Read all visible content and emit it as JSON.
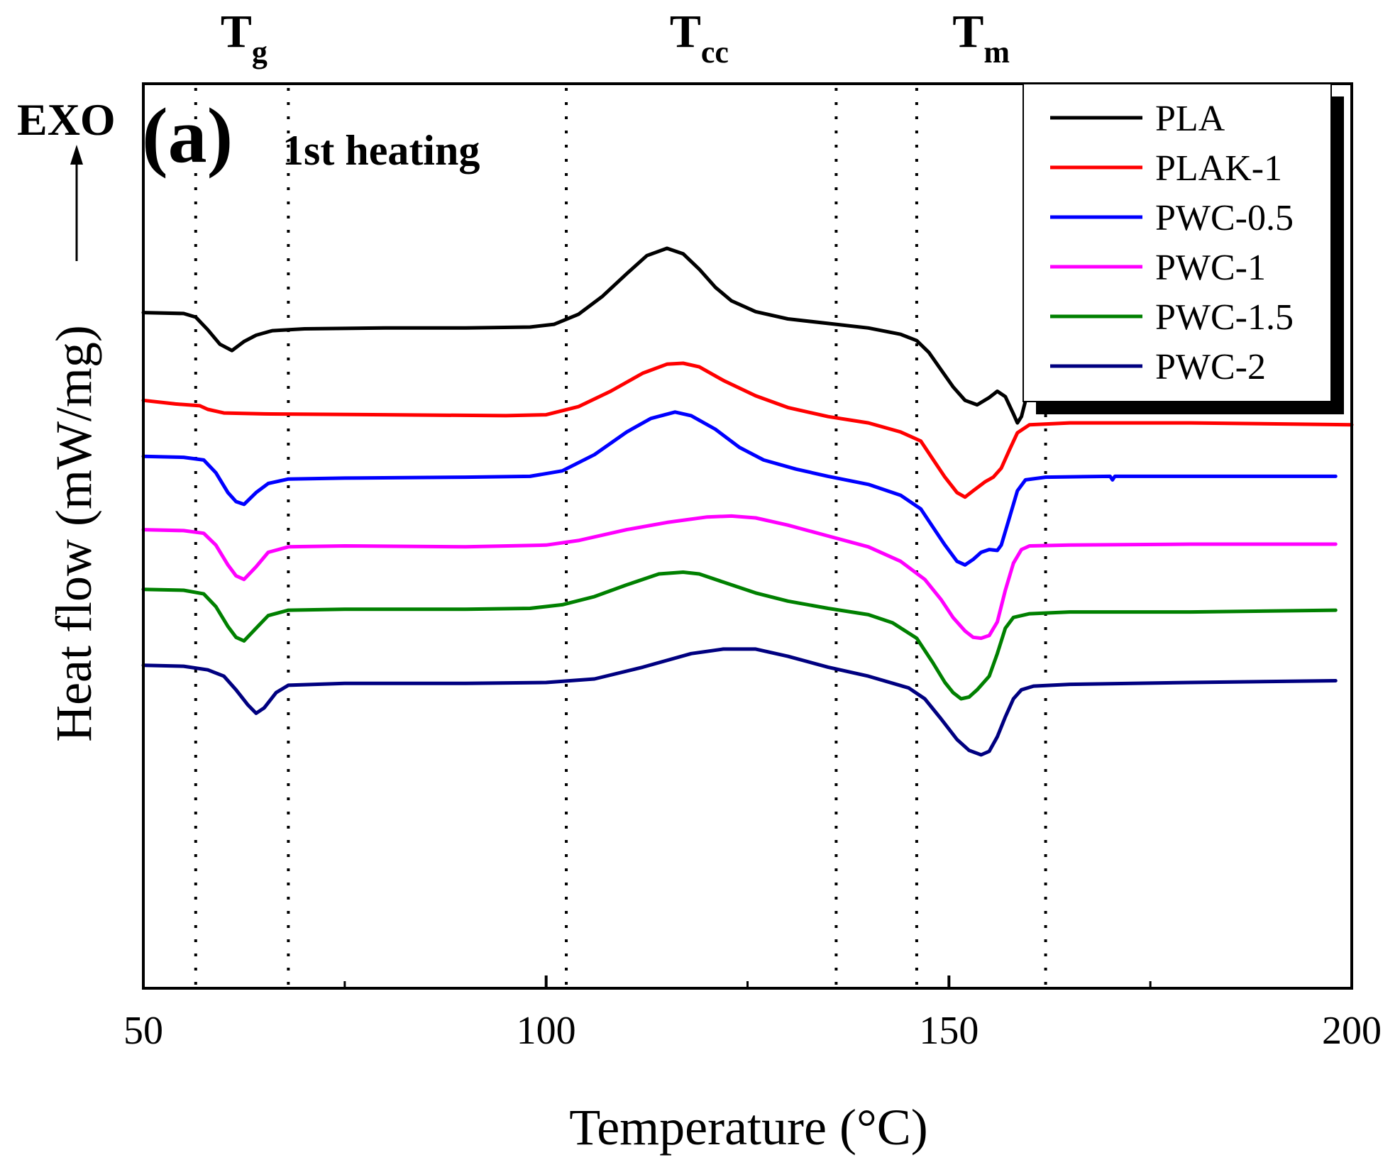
{
  "chart_data": {
    "type": "line",
    "title": "",
    "panel_label": "(a)",
    "panel_subtitle": "1st heating",
    "exo_label": "EXO",
    "xlabel": "Temperature (°C)",
    "ylabel": "Heat flow (mW/mg)",
    "xlim": [
      50,
      200
    ],
    "x_ticks": [
      "50",
      "100",
      "150",
      "200"
    ],
    "ylim": [
      0,
      1
    ],
    "grid": false,
    "legend_position": "top-right",
    "regions": [
      {
        "main": "T",
        "sub": "g",
        "x_center": 62.5
      },
      {
        "main": "T",
        "sub": "cc",
        "x_center": 119
      },
      {
        "main": "T",
        "sub": "m",
        "x_center": 154
      }
    ],
    "dotted_lines_x": [
      56.5,
      68,
      102.5,
      136,
      146,
      162
    ],
    "series": [
      {
        "name": "PLA",
        "color": "#000000",
        "points": [
          [
            50,
            0.747
          ],
          [
            55,
            0.746
          ],
          [
            56.5,
            0.742
          ],
          [
            58,
            0.728
          ],
          [
            59.5,
            0.712
          ],
          [
            61,
            0.705
          ],
          [
            62.5,
            0.715
          ],
          [
            64,
            0.722
          ],
          [
            66,
            0.727
          ],
          [
            70,
            0.729
          ],
          [
            80,
            0.73
          ],
          [
            90,
            0.73
          ],
          [
            98,
            0.731
          ],
          [
            101,
            0.734
          ],
          [
            104,
            0.745
          ],
          [
            107,
            0.765
          ],
          [
            110,
            0.79
          ],
          [
            112.5,
            0.81
          ],
          [
            115,
            0.818
          ],
          [
            117,
            0.812
          ],
          [
            119,
            0.795
          ],
          [
            121,
            0.775
          ],
          [
            123,
            0.76
          ],
          [
            126,
            0.748
          ],
          [
            130,
            0.74
          ],
          [
            135,
            0.735
          ],
          [
            140,
            0.73
          ],
          [
            144,
            0.723
          ],
          [
            146,
            0.716
          ],
          [
            147.5,
            0.703
          ],
          [
            149,
            0.684
          ],
          [
            150.5,
            0.665
          ],
          [
            152,
            0.65
          ],
          [
            153.5,
            0.645
          ],
          [
            155,
            0.653
          ],
          [
            156,
            0.66
          ],
          [
            157,
            0.654
          ],
          [
            158,
            0.635
          ],
          [
            158.5,
            0.625
          ],
          [
            159,
            0.632
          ],
          [
            160,
            0.667
          ],
          [
            161,
            0.7
          ],
          [
            162,
            0.72
          ],
          [
            163,
            0.729
          ],
          [
            165,
            0.732
          ],
          [
            170,
            0.733
          ],
          [
            180,
            0.734
          ],
          [
            190,
            0.735
          ],
          [
            198,
            0.736
          ]
        ]
      },
      {
        "name": "PLAK-1",
        "color": "#ff0000",
        "points": [
          [
            50,
            0.65
          ],
          [
            54,
            0.646
          ],
          [
            57,
            0.644
          ],
          [
            58,
            0.64
          ],
          [
            60,
            0.636
          ],
          [
            65,
            0.635
          ],
          [
            80,
            0.634
          ],
          [
            95,
            0.633
          ],
          [
            100,
            0.634
          ],
          [
            104,
            0.643
          ],
          [
            108,
            0.66
          ],
          [
            112,
            0.68
          ],
          [
            115,
            0.69
          ],
          [
            117,
            0.691
          ],
          [
            119,
            0.687
          ],
          [
            122,
            0.672
          ],
          [
            126,
            0.655
          ],
          [
            130,
            0.642
          ],
          [
            135,
            0.632
          ],
          [
            140,
            0.625
          ],
          [
            144,
            0.615
          ],
          [
            146.5,
            0.605
          ],
          [
            148,
            0.585
          ],
          [
            149.5,
            0.565
          ],
          [
            151,
            0.548
          ],
          [
            152,
            0.543
          ],
          [
            153,
            0.55
          ],
          [
            154.5,
            0.56
          ],
          [
            155.5,
            0.565
          ],
          [
            156.5,
            0.575
          ],
          [
            157.5,
            0.595
          ],
          [
            158.5,
            0.614
          ],
          [
            160,
            0.623
          ],
          [
            165,
            0.625
          ],
          [
            180,
            0.625
          ],
          [
            200,
            0.623
          ]
        ]
      },
      {
        "name": "PWC-0.5",
        "color": "#0000ff",
        "points": [
          [
            50,
            0.588
          ],
          [
            55,
            0.587
          ],
          [
            57.5,
            0.584
          ],
          [
            59,
            0.57
          ],
          [
            60.5,
            0.548
          ],
          [
            61.5,
            0.538
          ],
          [
            62.5,
            0.535
          ],
          [
            64,
            0.548
          ],
          [
            65.5,
            0.558
          ],
          [
            68,
            0.563
          ],
          [
            75,
            0.564
          ],
          [
            90,
            0.565
          ],
          [
            98,
            0.566
          ],
          [
            102,
            0.572
          ],
          [
            106,
            0.59
          ],
          [
            110,
            0.615
          ],
          [
            113,
            0.63
          ],
          [
            116,
            0.637
          ],
          [
            118,
            0.633
          ],
          [
            121,
            0.618
          ],
          [
            124,
            0.598
          ],
          [
            127,
            0.584
          ],
          [
            131,
            0.574
          ],
          [
            135,
            0.566
          ],
          [
            140,
            0.557
          ],
          [
            144,
            0.545
          ],
          [
            146.5,
            0.53
          ],
          [
            148,
            0.51
          ],
          [
            149.5,
            0.49
          ],
          [
            151,
            0.472
          ],
          [
            152,
            0.468
          ],
          [
            153,
            0.474
          ],
          [
            154,
            0.482
          ],
          [
            155,
            0.485
          ],
          [
            156,
            0.484
          ],
          [
            156.5,
            0.49
          ],
          [
            157.5,
            0.52
          ],
          [
            158.5,
            0.55
          ],
          [
            159.5,
            0.562
          ],
          [
            162,
            0.565
          ],
          [
            170,
            0.566
          ],
          [
            170.3,
            0.562
          ],
          [
            170.6,
            0.566
          ],
          [
            180,
            0.566
          ],
          [
            190,
            0.566
          ],
          [
            198,
            0.566
          ]
        ]
      },
      {
        "name": "PWC-1",
        "color": "#ff00ff",
        "points": [
          [
            50,
            0.507
          ],
          [
            55,
            0.506
          ],
          [
            57.5,
            0.503
          ],
          [
            59,
            0.49
          ],
          [
            60.5,
            0.468
          ],
          [
            61.5,
            0.456
          ],
          [
            62.5,
            0.452
          ],
          [
            64,
            0.466
          ],
          [
            65.5,
            0.482
          ],
          [
            68,
            0.488
          ],
          [
            75,
            0.489
          ],
          [
            90,
            0.488
          ],
          [
            100,
            0.49
          ],
          [
            104,
            0.495
          ],
          [
            110,
            0.507
          ],
          [
            115,
            0.515
          ],
          [
            120,
            0.521
          ],
          [
            123,
            0.522
          ],
          [
            126,
            0.52
          ],
          [
            130,
            0.512
          ],
          [
            135,
            0.5
          ],
          [
            140,
            0.488
          ],
          [
            144,
            0.472
          ],
          [
            147,
            0.452
          ],
          [
            149,
            0.43
          ],
          [
            150.5,
            0.41
          ],
          [
            152,
            0.395
          ],
          [
            153,
            0.388
          ],
          [
            154,
            0.387
          ],
          [
            155,
            0.39
          ],
          [
            156,
            0.405
          ],
          [
            157,
            0.44
          ],
          [
            158,
            0.47
          ],
          [
            159,
            0.485
          ],
          [
            160,
            0.489
          ],
          [
            165,
            0.49
          ],
          [
            180,
            0.491
          ],
          [
            198,
            0.491
          ]
        ]
      },
      {
        "name": "PWC-1.5",
        "color": "#008000",
        "points": [
          [
            50,
            0.441
          ],
          [
            55,
            0.44
          ],
          [
            57.5,
            0.436
          ],
          [
            59,
            0.422
          ],
          [
            60.5,
            0.4
          ],
          [
            61.5,
            0.388
          ],
          [
            62.5,
            0.384
          ],
          [
            64,
            0.398
          ],
          [
            65.5,
            0.412
          ],
          [
            68,
            0.418
          ],
          [
            75,
            0.419
          ],
          [
            90,
            0.419
          ],
          [
            98,
            0.42
          ],
          [
            102,
            0.424
          ],
          [
            106,
            0.433
          ],
          [
            110,
            0.446
          ],
          [
            114,
            0.458
          ],
          [
            117,
            0.46
          ],
          [
            119,
            0.458
          ],
          [
            122,
            0.449
          ],
          [
            126,
            0.437
          ],
          [
            130,
            0.428
          ],
          [
            135,
            0.42
          ],
          [
            140,
            0.413
          ],
          [
            143,
            0.404
          ],
          [
            146,
            0.387
          ],
          [
            148,
            0.36
          ],
          [
            149.5,
            0.338
          ],
          [
            150.5,
            0.327
          ],
          [
            151.5,
            0.32
          ],
          [
            152.5,
            0.322
          ],
          [
            153.5,
            0.33
          ],
          [
            155,
            0.345
          ],
          [
            156,
            0.37
          ],
          [
            157,
            0.398
          ],
          [
            158,
            0.41
          ],
          [
            160,
            0.414
          ],
          [
            165,
            0.416
          ],
          [
            180,
            0.416
          ],
          [
            198,
            0.418
          ]
        ]
      },
      {
        "name": "PWC-2",
        "color": "#000080",
        "points": [
          [
            50,
            0.357
          ],
          [
            55,
            0.356
          ],
          [
            58,
            0.352
          ],
          [
            60,
            0.345
          ],
          [
            61.5,
            0.33
          ],
          [
            63,
            0.313
          ],
          [
            64,
            0.304
          ],
          [
            65,
            0.31
          ],
          [
            66.5,
            0.327
          ],
          [
            68,
            0.335
          ],
          [
            75,
            0.337
          ],
          [
            90,
            0.337
          ],
          [
            100,
            0.338
          ],
          [
            106,
            0.342
          ],
          [
            112,
            0.355
          ],
          [
            118,
            0.37
          ],
          [
            122,
            0.375
          ],
          [
            126,
            0.375
          ],
          [
            130,
            0.367
          ],
          [
            135,
            0.355
          ],
          [
            140,
            0.345
          ],
          [
            145,
            0.332
          ],
          [
            147,
            0.32
          ],
          [
            149,
            0.298
          ],
          [
            151,
            0.275
          ],
          [
            152.5,
            0.263
          ],
          [
            154,
            0.258
          ],
          [
            155,
            0.262
          ],
          [
            156,
            0.278
          ],
          [
            157,
            0.3
          ],
          [
            158,
            0.32
          ],
          [
            159,
            0.33
          ],
          [
            160.5,
            0.334
          ],
          [
            165,
            0.336
          ],
          [
            180,
            0.338
          ],
          [
            198,
            0.34
          ]
        ]
      }
    ]
  }
}
